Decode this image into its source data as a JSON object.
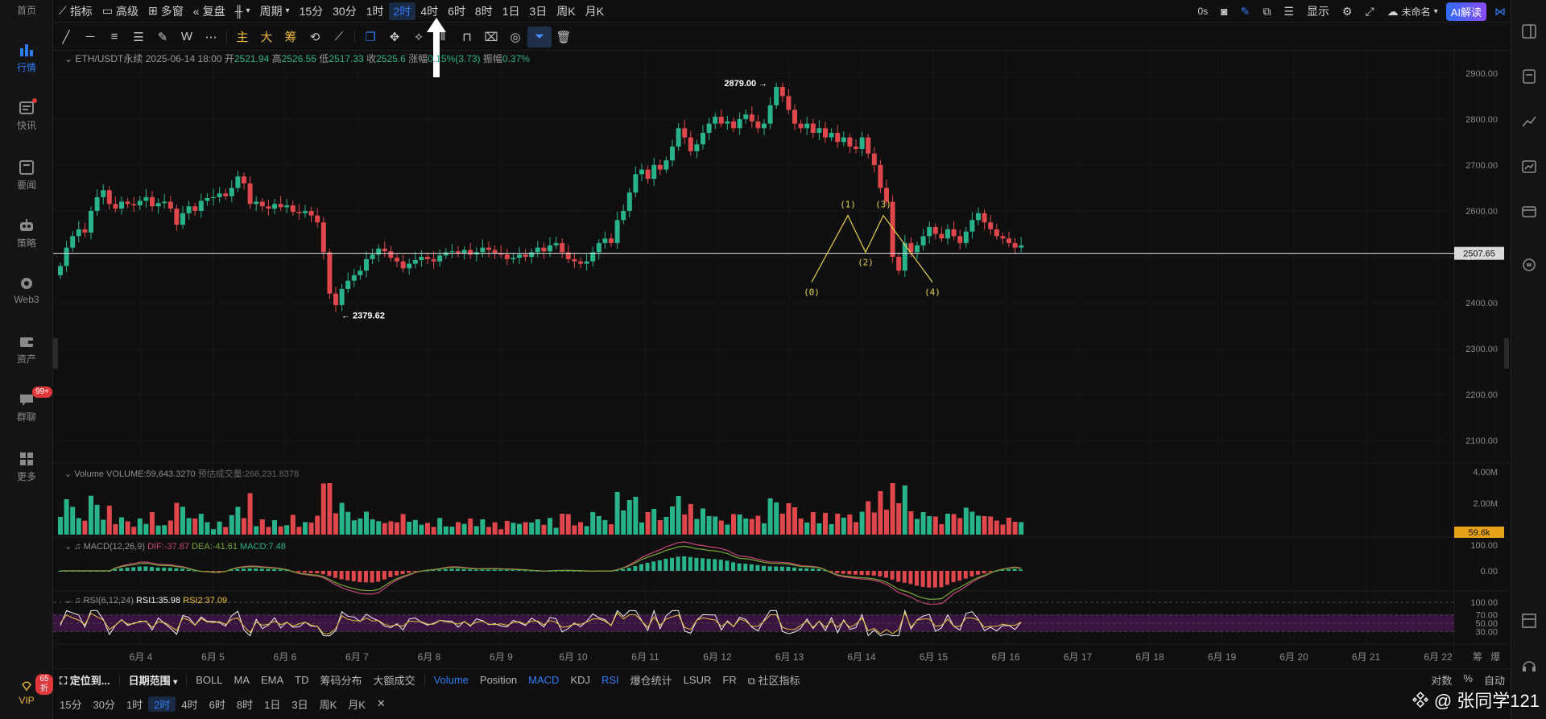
{
  "leftnav": {
    "items": [
      {
        "label": "首页",
        "icon": "home-icon"
      },
      {
        "label": "行情",
        "icon": "market-chart-icon"
      },
      {
        "label": "快讯",
        "icon": "flash-news-icon"
      },
      {
        "label": "要闻",
        "icon": "news-icon"
      },
      {
        "label": "策略",
        "icon": "robot-icon"
      },
      {
        "label": "Web3",
        "icon": "web3-icon"
      },
      {
        "label": "资产",
        "icon": "wallet-icon"
      },
      {
        "label": "群聊",
        "icon": "chat-icon"
      },
      {
        "label": "更多",
        "icon": "grid-icon"
      }
    ],
    "chat_badge": "99+",
    "vip_label": "VIP",
    "vip_badge": "65折"
  },
  "topbar": {
    "indicators": "指标",
    "advanced": "高级",
    "multi_window": "多窗",
    "replay": "复盘",
    "period": "周期",
    "intervals": [
      "15分",
      "30分",
      "1时",
      "2时",
      "4时",
      "6时",
      "8时",
      "1日",
      "3日",
      "周K",
      "月K"
    ],
    "active_interval": "2时",
    "timer": "0s",
    "display": "显示",
    "layout_name": "未命名",
    "ai_button": "AI解读"
  },
  "drawbar": {
    "labels": [
      "主",
      "大",
      "筹"
    ]
  },
  "ohlc": {
    "symbol": "ETH/USDT永续",
    "datetime": "2025-06-14 18:00",
    "open_label": "开",
    "open": "2521.94",
    "high_label": "高",
    "high": "2526.55",
    "low_label": "低",
    "low": "2517.33",
    "close_label": "收",
    "close": "2525.6",
    "change_label": "涨幅",
    "change": "0.15%(3.73)",
    "amp_label": "振幅",
    "amp": "0.37%"
  },
  "volume_info": {
    "name": "Volume",
    "value": "VOLUME:59,643.3270",
    "est": "预估成交量:266,231.8378"
  },
  "macd_info": {
    "name": "MACD(12,26,9)",
    "dif": "DIF:-37.87",
    "dea": "DEA:-41.61",
    "macd": "MACD:7.48"
  },
  "rsi_info": {
    "name": "RSI(6,12,24)",
    "rsi1": "RSI1:35.98",
    "rsi2": "RSI2:37.09"
  },
  "annotations": {
    "high_label": "2879.00",
    "low_label": "2379.62",
    "current_price": "2507.65",
    "volume_tag": "59.6k",
    "wave_labels": [
      "(0)",
      "(1)",
      "(2)",
      "(3)",
      "(4)"
    ]
  },
  "bottom": {
    "locate": "定位到...",
    "date_range": "日期范围",
    "indicators": [
      "BOLL",
      "MA",
      "EMA",
      "TD",
      "筹码分布",
      "大额成交"
    ],
    "sub_indicators": [
      "Volume",
      "Position",
      "MACD",
      "KDJ",
      "RSI",
      "爆仓统计",
      "LSUR",
      "FR"
    ],
    "active_sub": [
      "Volume",
      "MACD",
      "RSI"
    ],
    "community": "社区指标",
    "scale_options": [
      "对数",
      "%",
      "自动"
    ],
    "intervals": [
      "15分",
      "30分",
      "1时",
      "2时",
      "4时",
      "6时",
      "8时",
      "1日",
      "3日",
      "周K",
      "月K"
    ],
    "active_interval": "2时",
    "close_symbol": "✕"
  },
  "watermark": "@ 张同学121",
  "colors": {
    "up": "#29b38b",
    "down": "#e0474c",
    "accent": "#2f7cf6",
    "wave": "#e8d44d",
    "dif": "#c8457a",
    "dea": "#7aa832",
    "rsi1": "#f2f2f2",
    "rsi2": "#e8c23a"
  },
  "chart_data": [
    {
      "type": "candlestick",
      "title": "ETH/USDT永续",
      "interval": "2时",
      "x_ticks": [
        "6月 4",
        "6月 5",
        "6月 6",
        "6月 7",
        "6月 8",
        "6月 9",
        "6月 10",
        "6月 11",
        "6月 12",
        "6月 13",
        "6月 14",
        "6月 15",
        "6月 16",
        "6月 17",
        "6月 18",
        "6月 19",
        "6月 20",
        "6月 21",
        "6月 22",
        "筹",
        "爆"
      ],
      "y_ticks": [
        "2900.00",
        "2800.00",
        "2700.00",
        "2600.00",
        "2500.00",
        "2400.00",
        "2300.00",
        "2200.00",
        "2100.00"
      ],
      "ylim": [
        2060,
        2940
      ],
      "closes": [
        2480,
        2520,
        2545,
        2560,
        2553,
        2600,
        2630,
        2645,
        2615,
        2605,
        2620,
        2615,
        2612,
        2622,
        2630,
        2610,
        2617,
        2620,
        2605,
        2570,
        2595,
        2610,
        2600,
        2622,
        2628,
        2630,
        2638,
        2632,
        2650,
        2675,
        2660,
        2615,
        2620,
        2610,
        2605,
        2615,
        2608,
        2612,
        2598,
        2595,
        2600,
        2590,
        2575,
        2510,
        2420,
        2395,
        2430,
        2448,
        2460,
        2470,
        2495,
        2505,
        2518,
        2512,
        2498,
        2490,
        2475,
        2485,
        2493,
        2500,
        2495,
        2490,
        2503,
        2510,
        2512,
        2508,
        2515,
        2505,
        2510,
        2520,
        2515,
        2508,
        2505,
        2495,
        2498,
        2505,
        2500,
        2510,
        2520,
        2512,
        2525,
        2530,
        2510,
        2495,
        2490,
        2485,
        2490,
        2510,
        2530,
        2540,
        2530,
        2580,
        2600,
        2640,
        2680,
        2690,
        2670,
        2700,
        2690,
        2710,
        2740,
        2780,
        2760,
        2730,
        2745,
        2770,
        2790,
        2805,
        2790,
        2795,
        2780,
        2800,
        2810,
        2795,
        2780,
        2790,
        2830,
        2870,
        2850,
        2820,
        2790,
        2780,
        2790,
        2770,
        2780,
        2760,
        2770,
        2750,
        2760,
        2740,
        2735,
        2760,
        2725,
        2700,
        2650,
        2620,
        2500,
        2470,
        2530,
        2510,
        2525,
        2545,
        2565,
        2550,
        2540,
        2560,
        2545,
        2530,
        2555,
        2580,
        2595,
        2575,
        2560,
        2545,
        2540,
        2530,
        2520,
        2525
      ],
      "series_high": 2879.0,
      "series_low": 2379.62,
      "last_price": 2507.65,
      "wave_points": [
        {
          "label": "(0)",
          "price": 2445
        },
        {
          "label": "(1)",
          "price": 2590
        },
        {
          "label": "(2)",
          "price": 2510
        },
        {
          "label": "(3)",
          "price": 2590
        },
        {
          "label": "(4)",
          "price": 2445
        }
      ]
    },
    {
      "type": "bar",
      "title": "Volume",
      "y_ticks": [
        "4.00M",
        "2.00M"
      ],
      "ylim": [
        0,
        4000000
      ],
      "last_value": "59.6k"
    },
    {
      "type": "line",
      "title": "MACD(12,26,9)",
      "y_ticks": [
        "100.00",
        "0.00"
      ],
      "series": [
        {
          "name": "DIF",
          "last": -37.87
        },
        {
          "name": "DEA",
          "last": -41.61
        },
        {
          "name": "MACD",
          "last": 7.48
        }
      ]
    },
    {
      "type": "line",
      "title": "RSI(6,12,24)",
      "y_ticks": [
        "100.00",
        "70.00",
        "50.00",
        "30.00"
      ],
      "ylim": [
        0,
        100
      ],
      "series": [
        {
          "name": "RSI1",
          "last": 35.98
        },
        {
          "name": "RSI2",
          "last": 37.09
        }
      ]
    }
  ]
}
